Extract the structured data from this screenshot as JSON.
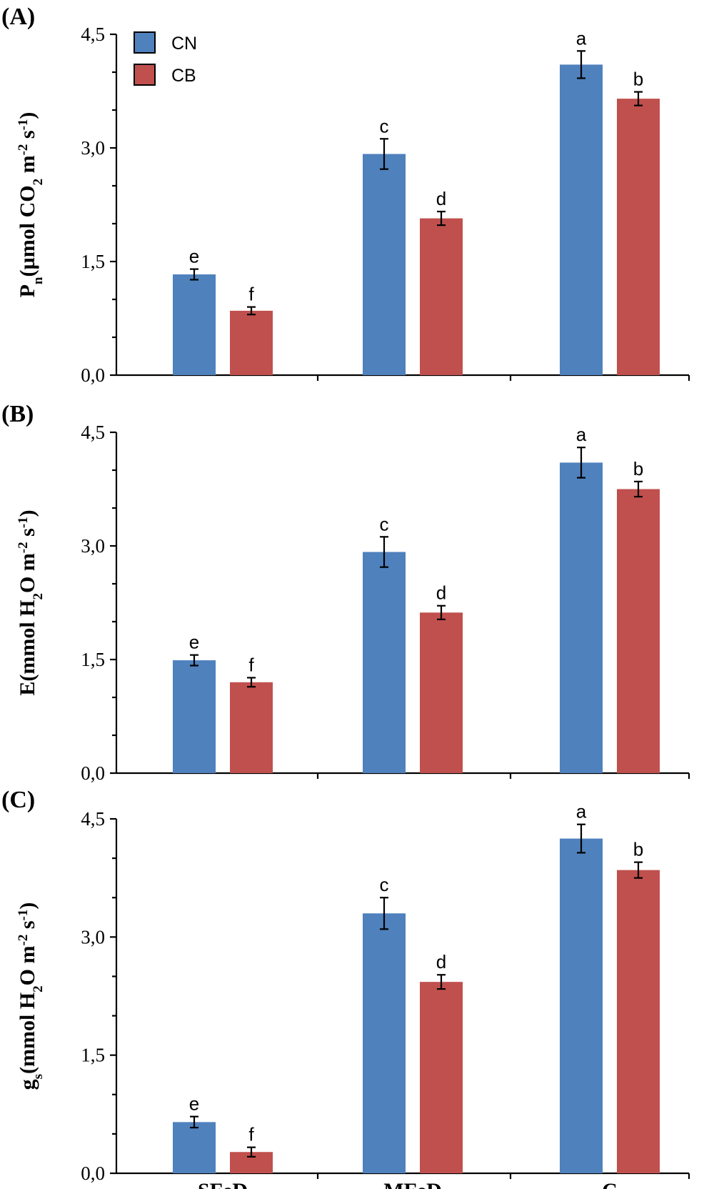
{
  "chart_data": [
    {
      "panel_label": "(A)",
      "type": "bar",
      "ylabel": {
        "main": "P",
        "sub1": "n",
        "open": "(µmol CO",
        "sub2": "2",
        "mid": " m",
        "sup1": "-2",
        "mid2": " s",
        "sup2": "-1",
        "close": ")"
      },
      "ylim": [
        0,
        4.5
      ],
      "yticks": [
        "0,0",
        "1,5",
        "3,0",
        "4,5"
      ],
      "categories": [
        "SFeD",
        "MFeD",
        "C"
      ],
      "series": [
        {
          "name": "CN",
          "values": [
            1.33,
            2.92,
            4.1
          ],
          "errors": [
            0.07,
            0.2,
            0.18
          ],
          "letters": [
            "e",
            "c",
            "a"
          ]
        },
        {
          "name": "CB",
          "values": [
            0.85,
            2.07,
            3.65
          ],
          "errors": [
            0.05,
            0.09,
            0.09
          ],
          "letters": [
            "f",
            "d",
            "b"
          ]
        }
      ]
    },
    {
      "panel_label": "(B)",
      "type": "bar",
      "ylabel": {
        "main": "E",
        "sub1": "",
        "open": "(mmol H",
        "sub2": "2",
        "mid": "O m",
        "sup1": "-2",
        "mid2": " s",
        "sup2": "-1",
        "close": ")"
      },
      "ylim": [
        0,
        4.5
      ],
      "yticks": [
        "0,0",
        "1,5",
        "3,0",
        "4,5"
      ],
      "categories": [
        "SFeD",
        "MFeD",
        "C"
      ],
      "series": [
        {
          "name": "CN",
          "values": [
            1.49,
            2.92,
            4.1
          ],
          "errors": [
            0.07,
            0.2,
            0.2
          ],
          "letters": [
            "e",
            "c",
            "a"
          ]
        },
        {
          "name": "CB",
          "values": [
            1.2,
            2.12,
            3.75
          ],
          "errors": [
            0.06,
            0.09,
            0.1
          ],
          "letters": [
            "f",
            "d",
            "b"
          ]
        }
      ]
    },
    {
      "panel_label": "(C)",
      "type": "bar",
      "ylabel": {
        "main": "g",
        "sub1": "s",
        "open": "(mmol H",
        "sub2": "2",
        "mid": "O m",
        "sup1": "-2",
        "mid2": " s",
        "sup2": "-1",
        "close": ")"
      },
      "ylim": [
        0,
        4.5
      ],
      "yticks": [
        "0,0",
        "1,5",
        "3,0",
        "4,5"
      ],
      "categories": [
        "SFeD",
        "MFeD",
        "C"
      ],
      "series": [
        {
          "name": "CN",
          "values": [
            0.65,
            3.3,
            4.25
          ],
          "errors": [
            0.07,
            0.2,
            0.18
          ],
          "letters": [
            "e",
            "c",
            "a"
          ]
        },
        {
          "name": "CB",
          "values": [
            0.27,
            2.43,
            3.85
          ],
          "errors": [
            0.06,
            0.09,
            0.1
          ],
          "letters": [
            "f",
            "d",
            "b"
          ]
        }
      ]
    }
  ],
  "legend": [
    {
      "name": "CN",
      "color": "#4f81bd"
    },
    {
      "name": "CB",
      "color": "#c0504d"
    }
  ],
  "colors": {
    "CN": "#4f81bd",
    "CB": "#c0504d",
    "axis": "#000000"
  }
}
